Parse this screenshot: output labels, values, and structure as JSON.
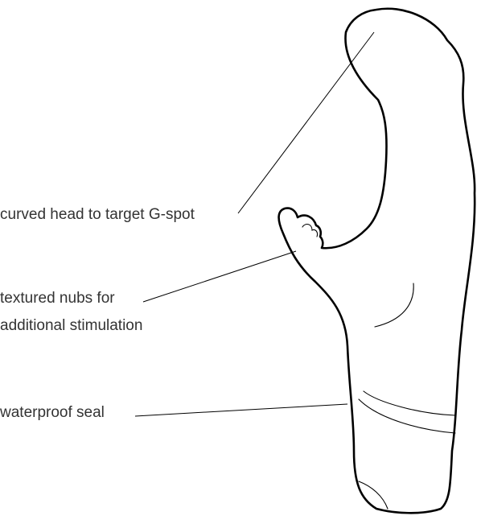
{
  "diagram": {
    "labels": {
      "curved_head": "curved head to target G-spot",
      "textured_nubs_line1": "textured nubs for",
      "textured_nubs_line2": "additional stimulation",
      "waterproof_seal": "waterproof seal"
    },
    "colors": {
      "outline": "#000000",
      "text": "#333333",
      "background": "#ffffff"
    }
  }
}
